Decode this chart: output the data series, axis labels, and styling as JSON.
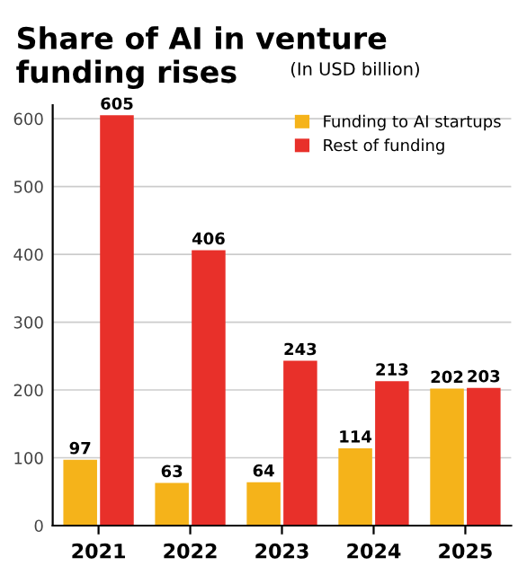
{
  "chart_data": {
    "type": "bar",
    "title": "Share of AI in venture funding rises",
    "subtitle": "(In USD billion)",
    "categories": [
      "2021",
      "2022",
      "2023",
      "2024",
      "2025"
    ],
    "series": [
      {
        "name": "Funding to AI startups",
        "color": "#f5b31a",
        "values": [
          97,
          63,
          64,
          114,
          202
        ]
      },
      {
        "name": "Rest of funding",
        "color": "#e8302a",
        "values": [
          605,
          406,
          243,
          213,
          203
        ]
      }
    ],
    "ylim": [
      0,
      620
    ],
    "yticks": [
      0,
      100,
      200,
      300,
      400,
      500,
      600
    ],
    "grid": "y",
    "legend": "top right",
    "data_labels": true
  }
}
